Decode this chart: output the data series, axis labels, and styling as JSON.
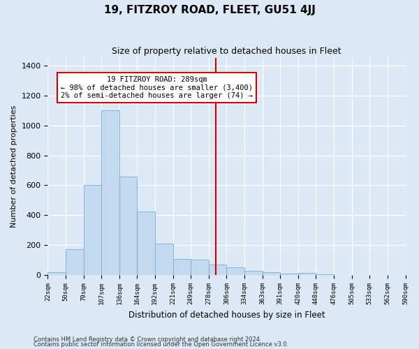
{
  "title": "19, FITZROY ROAD, FLEET, GU51 4JJ",
  "subtitle": "Size of property relative to detached houses in Fleet",
  "xlabel": "Distribution of detached houses by size in Fleet",
  "ylabel": "Number of detached properties",
  "bar_color": "#c2d9f0",
  "bar_edge_color": "#7aafd4",
  "background_color": "#dce8f5",
  "grid_color": "#ffffff",
  "annotation_text": "19 FITZROY ROAD: 289sqm\n← 98% of detached houses are smaller (3,400)\n2% of semi-detached houses are larger (74) →",
  "vline_color": "#cc0000",
  "bins": [
    22,
    50,
    79,
    107,
    136,
    164,
    192,
    221,
    249,
    278,
    306,
    334,
    363,
    391,
    420,
    448,
    476,
    505,
    533,
    562,
    590
  ],
  "bin_labels": [
    "22sqm",
    "50sqm",
    "79sqm",
    "107sqm",
    "136sqm",
    "164sqm",
    "192sqm",
    "221sqm",
    "249sqm",
    "278sqm",
    "306sqm",
    "334sqm",
    "363sqm",
    "391sqm",
    "420sqm",
    "448sqm",
    "476sqm",
    "505sqm",
    "533sqm",
    "562sqm",
    "590sqm"
  ],
  "counts": [
    18,
    175,
    600,
    1100,
    660,
    425,
    210,
    110,
    105,
    70,
    50,
    27,
    20,
    10,
    13,
    5,
    0,
    0,
    0,
    0
  ],
  "ylim": [
    0,
    1450
  ],
  "yticks": [
    0,
    200,
    400,
    600,
    800,
    1000,
    1200,
    1400
  ],
  "footnote1": "Contains HM Land Registry data © Crown copyright and database right 2024.",
  "footnote2": "Contains public sector information licensed under the Open Government Licence v3.0."
}
